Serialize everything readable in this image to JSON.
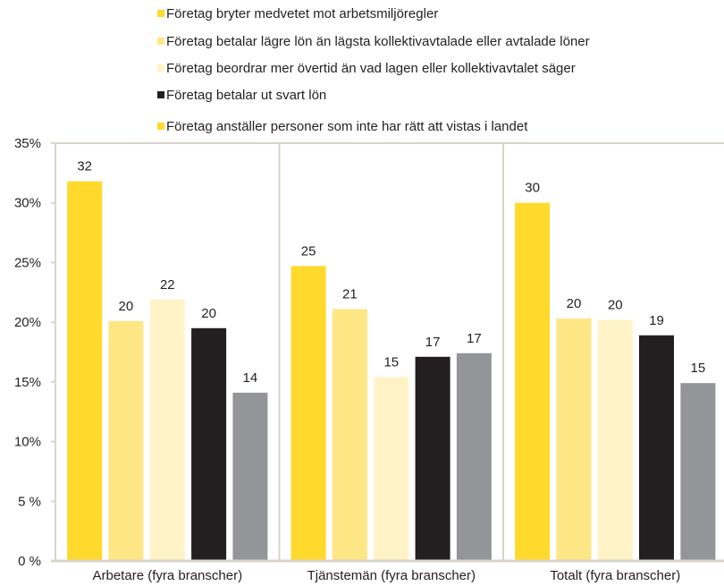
{
  "chart_data": {
    "type": "bar",
    "categories": [
      "Arbetare (fyra branscher)",
      "Tjänstemän (fyra branscher)",
      "Totalt (fyra branscher)"
    ],
    "ylim": [
      0,
      35
    ],
    "yticks": [
      0,
      5,
      10,
      15,
      20,
      25,
      30,
      35
    ],
    "ytick_labels": [
      "0 %",
      "5 %",
      "10%",
      "15%",
      "20%",
      "25%",
      "30%",
      "35%"
    ],
    "grid": false,
    "legend_position": "top",
    "series": [
      {
        "name": "Företag bryter medvetet mot arbetsmiljöregler",
        "values": [
          31.8,
          24.7,
          30.0
        ],
        "labels": [
          "32",
          "25",
          "30"
        ],
        "color": "#FFD92B",
        "legend_color": "#FFD92B"
      },
      {
        "name": "Företag betalar lägre lön än lägsta kollektivavtalade eller avtalade löner",
        "values": [
          20.1,
          21.1,
          20.3
        ],
        "labels": [
          "20",
          "21",
          "20"
        ],
        "color": "#FFE685",
        "legend_color": "#FFE685"
      },
      {
        "name": "Företag beordrar mer övertid än vad lagen eller kollektivavtalet säger",
        "values": [
          21.9,
          15.4,
          20.2
        ],
        "labels": [
          "22",
          "15",
          "20"
        ],
        "color": "#FFF3C8",
        "legend_color": "#FFF3C8"
      },
      {
        "name": "Företag betalar ut svart lön",
        "values": [
          19.5,
          17.1,
          18.9
        ],
        "labels": [
          "20",
          "17",
          "19"
        ],
        "color": "#231F20",
        "legend_color": "#231F20"
      },
      {
        "name": "Företag anställer personer som inte har rätt att vistas i landet",
        "values": [
          14.1,
          17.4,
          14.9
        ],
        "labels": [
          "14",
          "17",
          "15"
        ],
        "color": "#939598",
        "legend_color": "#FFD92B"
      }
    ]
  },
  "colors": {
    "frame": "#D9D4CB",
    "text": "#231F20",
    "background": "#FFFFFF"
  }
}
